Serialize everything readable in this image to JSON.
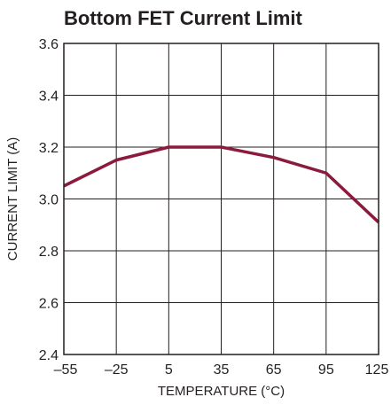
{
  "chart_data": {
    "type": "line",
    "title": "Bottom FET Current Limit",
    "xlabel": "TEMPERATURE (°C)",
    "ylabel": "CURRENT LIMIT (A)",
    "x": [
      -55,
      -25,
      5,
      35,
      65,
      95,
      125
    ],
    "x_tick_labels": [
      "–55",
      "–25",
      "5",
      "35",
      "65",
      "95",
      "125"
    ],
    "xlim": [
      -55,
      125
    ],
    "ylim": [
      2.4,
      3.6
    ],
    "y_ticks": [
      2.4,
      2.6,
      2.8,
      3.0,
      3.2,
      3.4,
      3.6
    ],
    "y_tick_labels": [
      "2.4",
      "2.6",
      "2.8",
      "3.0",
      "3.2",
      "3.4",
      "3.6"
    ],
    "grid": true,
    "series": [
      {
        "values": [
          3.05,
          3.15,
          3.2,
          3.2,
          3.16,
          3.1,
          2.91
        ],
        "color": "#8b1a3d"
      }
    ]
  }
}
